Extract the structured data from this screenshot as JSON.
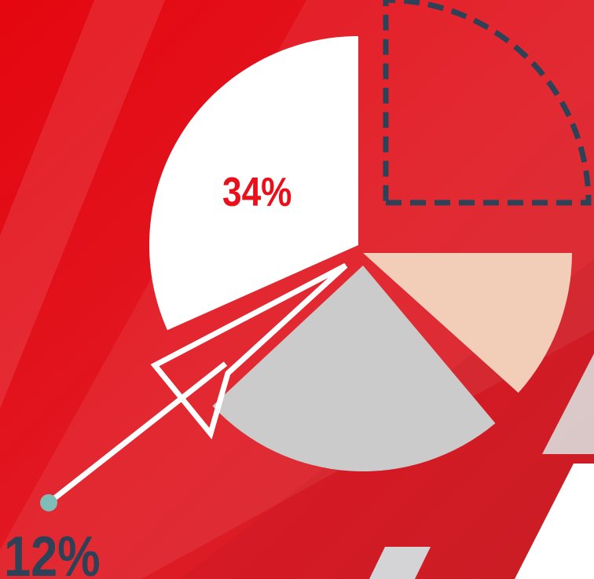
{
  "colors": {
    "background": "#e8101a",
    "accent_dark": "#2d4257",
    "slice_white": "#ffffff",
    "slice_peach": "#f2cdb7",
    "slice_gray": "#cbcbcc",
    "dot": "#7fbdb7"
  },
  "chart_data": {
    "type": "pie",
    "values": [
      34,
      12
    ],
    "data_labels": [
      "34%",
      "12%"
    ]
  }
}
